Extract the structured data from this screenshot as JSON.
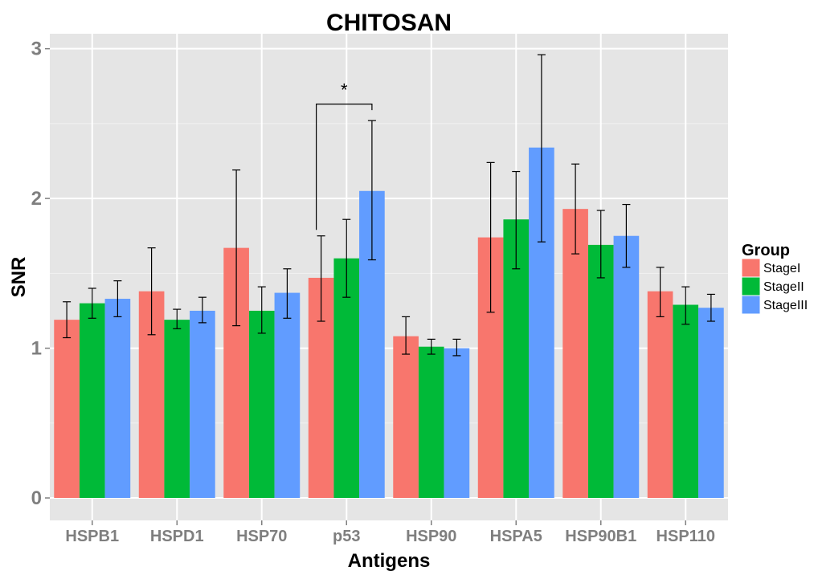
{
  "chart_data": {
    "type": "bar",
    "title": "CHITOSAN",
    "xlabel": "Antigens",
    "ylabel": "SNR",
    "ylim": [
      -0.15,
      3.1
    ],
    "yticks": [
      0,
      1,
      2,
      3
    ],
    "grid": true,
    "legend": {
      "title": "Group",
      "position": "right"
    },
    "categories": [
      "HSPB1",
      "HSPD1",
      "HSP70",
      "p53",
      "HSP90",
      "HSPA5",
      "HSP90B1",
      "HSP110"
    ],
    "series": [
      {
        "name": "StageI",
        "color": "#F8766D",
        "values": [
          1.19,
          1.38,
          1.67,
          1.47,
          1.08,
          1.74,
          1.93,
          1.38
        ],
        "err_low": [
          1.07,
          1.09,
          1.15,
          1.18,
          0.96,
          1.24,
          1.63,
          1.21
        ],
        "err_high": [
          1.31,
          1.67,
          2.19,
          1.75,
          1.21,
          2.24,
          2.23,
          1.54
        ]
      },
      {
        "name": "StageII",
        "color": "#00BA38",
        "values": [
          1.3,
          1.19,
          1.25,
          1.6,
          1.01,
          1.86,
          1.69,
          1.29
        ],
        "err_low": [
          1.2,
          1.13,
          1.1,
          1.34,
          0.96,
          1.53,
          1.47,
          1.16
        ],
        "err_high": [
          1.4,
          1.26,
          1.41,
          1.86,
          1.06,
          2.18,
          1.92,
          1.41
        ]
      },
      {
        "name": "StageIII",
        "color": "#619CFF",
        "values": [
          1.33,
          1.25,
          1.37,
          2.05,
          1.0,
          2.34,
          1.75,
          1.27
        ],
        "err_low": [
          1.21,
          1.17,
          1.2,
          1.59,
          0.95,
          1.71,
          1.54,
          1.18
        ],
        "err_high": [
          1.45,
          1.34,
          1.53,
          2.52,
          1.06,
          2.96,
          1.96,
          1.36
        ]
      }
    ],
    "annotations": [
      {
        "text": "*",
        "category": "p53",
        "from_series": 0,
        "to_series": 2,
        "y": 2.63,
        "left_y": 1.79,
        "right_y": 2.59
      }
    ]
  }
}
